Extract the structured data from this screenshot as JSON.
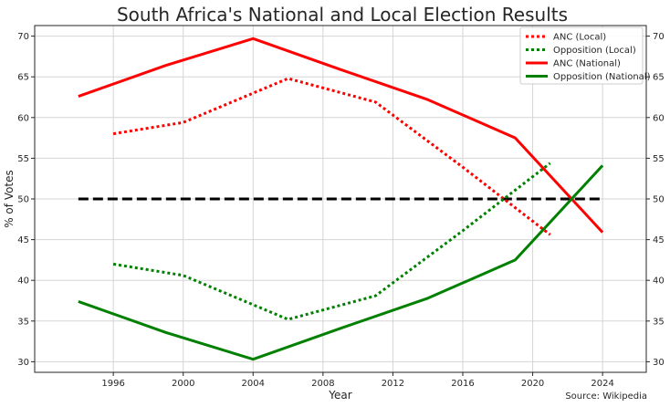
{
  "chart_data": {
    "type": "line",
    "title": "South Africa's National and Local Election Results",
    "xlabel": "Year",
    "ylabel": "% of Votes",
    "source": "Source: Wikipedia",
    "xlim": [
      1991.5,
      2026.5
    ],
    "ylim": [
      28.7,
      71.3
    ],
    "x_ticks": [
      1996,
      2000,
      2004,
      2008,
      2012,
      2016,
      2020,
      2024
    ],
    "y_ticks": [
      30,
      35,
      40,
      45,
      50,
      55,
      60,
      65,
      70
    ],
    "grid": true,
    "legend_position": "top-right",
    "reference_line": {
      "y": 50,
      "x_start": 1994,
      "x_end": 2024,
      "color": "#000000",
      "style": "dashed"
    },
    "series": [
      {
        "name": "ANC (Local)",
        "style": "dotted",
        "color": "#ff0000",
        "x": [
          1996,
          2000,
          2006,
          2011,
          2016,
          2021
        ],
        "y": [
          58.0,
          59.4,
          64.8,
          61.9,
          53.9,
          45.6
        ]
      },
      {
        "name": "Opposition (Local)",
        "style": "dotted",
        "color": "#008000",
        "x": [
          1996,
          2000,
          2006,
          2011,
          2016,
          2021
        ],
        "y": [
          42.0,
          40.6,
          35.2,
          38.1,
          46.1,
          54.4
        ]
      },
      {
        "name": "ANC (National)",
        "style": "solid",
        "color": "#ff0000",
        "x": [
          1994,
          1999,
          2004,
          2009,
          2014,
          2019,
          2024
        ],
        "y": [
          62.6,
          66.4,
          69.7,
          65.9,
          62.2,
          57.5,
          45.9
        ]
      },
      {
        "name": "Opposition (National)",
        "style": "solid",
        "color": "#008000",
        "x": [
          1994,
          1999,
          2004,
          2009,
          2014,
          2019,
          2024
        ],
        "y": [
          37.4,
          33.6,
          30.3,
          34.1,
          37.8,
          42.5,
          54.1
        ]
      }
    ]
  }
}
